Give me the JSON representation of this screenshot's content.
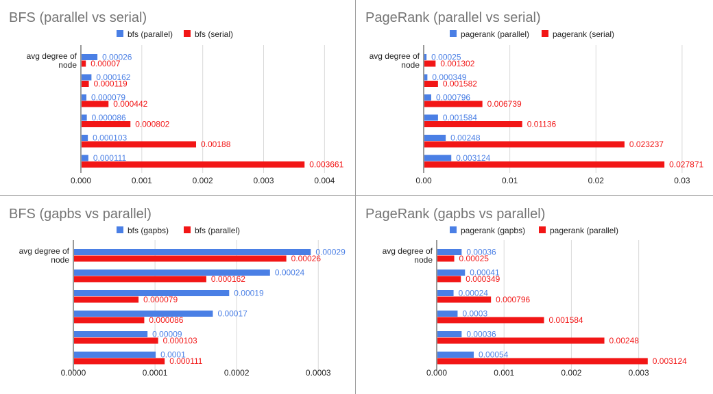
{
  "chart_data": [
    {
      "type": "bar",
      "orientation": "horizontal",
      "title": "BFS (parallel vs serial)",
      "category_label": "avg degree of node",
      "categories": [
        "",
        "",
        "",
        "",
        "",
        ""
      ],
      "xlim": [
        0,
        0.0043
      ],
      "xticks": [
        "0.000",
        "0.001",
        "0.002",
        "0.003",
        "0.004"
      ],
      "xtick_values": [
        0,
        0.001,
        0.002,
        0.003,
        0.004
      ],
      "legend_position": "top",
      "grid": true,
      "colors": [
        "#4a7fe5",
        "#f21616"
      ],
      "series": [
        {
          "name": "bfs (parallel)",
          "values": [
            0.00026,
            0.000162,
            7.9e-05,
            8.6e-05,
            0.000103,
            0.000111
          ],
          "labels": [
            "0.00026",
            "0.000162",
            "0.000079",
            "0.000086",
            "0.000103",
            "0.000111"
          ]
        },
        {
          "name": "bfs (serial)",
          "values": [
            7e-05,
            0.000119,
            0.000442,
            0.000802,
            0.00188,
            0.003661
          ],
          "labels": [
            "0.00007",
            "0.000119",
            "0.000442",
            "0.000802",
            "0.00188",
            "0.003661"
          ]
        }
      ]
    },
    {
      "type": "bar",
      "orientation": "horizontal",
      "title": "PageRank (parallel vs serial)",
      "category_label": "avg degree of node",
      "categories": [
        "",
        "",
        "",
        "",
        "",
        ""
      ],
      "xlim": [
        0,
        0.032
      ],
      "xticks": [
        "0.00",
        "0.01",
        "0.02",
        "0.03"
      ],
      "xtick_values": [
        0,
        0.01,
        0.02,
        0.03
      ],
      "legend_position": "top",
      "grid": true,
      "colors": [
        "#4a7fe5",
        "#f21616"
      ],
      "series": [
        {
          "name": "pagerank (parallel)",
          "values": [
            0.00025,
            0.000349,
            0.000796,
            0.001584,
            0.00248,
            0.003124
          ],
          "labels": [
            "0.00025",
            "0.000349",
            "0.000796",
            "0.001584",
            "0.00248",
            "0.003124"
          ]
        },
        {
          "name": "pagerank (serial)",
          "values": [
            0.001302,
            0.001582,
            0.006739,
            0.01136,
            0.023237,
            0.027871
          ],
          "labels": [
            "0.001302",
            "0.001582",
            "0.006739",
            "0.01136",
            "0.023237",
            "0.027871"
          ]
        }
      ]
    },
    {
      "type": "bar",
      "orientation": "horizontal",
      "title": "BFS (gapbs vs parallel)",
      "category_label": "avg degree of node",
      "categories": [
        "",
        "",
        "",
        "",
        "",
        ""
      ],
      "xlim": [
        0,
        0.00033
      ],
      "xticks": [
        "0.0000",
        "0.0001",
        "0.0002",
        "0.0003"
      ],
      "xtick_values": [
        0,
        0.0001,
        0.0002,
        0.0003
      ],
      "legend_position": "top",
      "grid": true,
      "colors": [
        "#4a7fe5",
        "#f21616"
      ],
      "series": [
        {
          "name": "bfs (gapbs)",
          "values": [
            0.00029,
            0.00024,
            0.00019,
            0.00017,
            9e-05,
            0.0001
          ],
          "labels": [
            "0.00029",
            "0.00024",
            "0.00019",
            "0.00017",
            "0.00009",
            "0.0001"
          ]
        },
        {
          "name": "bfs (parallel)",
          "values": [
            0.00026,
            0.000162,
            7.9e-05,
            8.6e-05,
            0.000103,
            0.000111
          ],
          "labels": [
            "0.00026",
            "0.000162",
            "0.000079",
            "0.000086",
            "0.000103",
            "0.000111"
          ]
        }
      ]
    },
    {
      "type": "bar",
      "orientation": "horizontal",
      "title": "PageRank (gapbs vs parallel)",
      "category_label": "avg degree of node",
      "categories": [
        "",
        "",
        "",
        "",
        "",
        ""
      ],
      "xlim": [
        0,
        0.0039
      ],
      "xticks": [
        "0.000",
        "0.001",
        "0.002",
        "0.003"
      ],
      "xtick_values": [
        0,
        0.001,
        0.002,
        0.003
      ],
      "legend_position": "top",
      "grid": true,
      "colors": [
        "#4a7fe5",
        "#f21616"
      ],
      "series": [
        {
          "name": "pagerank (gapbs)",
          "values": [
            0.00036,
            0.00041,
            0.00024,
            0.0003,
            0.00036,
            0.00054
          ],
          "labels": [
            "0.00036",
            "0.00041",
            "0.00024",
            "0.0003",
            "0.00036",
            "0.00054"
          ]
        },
        {
          "name": "pagerank (parallel)",
          "values": [
            0.00025,
            0.000349,
            0.000796,
            0.001584,
            0.00248,
            0.003124
          ],
          "labels": [
            "0.00025",
            "0.000349",
            "0.000796",
            "0.001584",
            "0.00248",
            "0.003124"
          ]
        }
      ]
    }
  ]
}
